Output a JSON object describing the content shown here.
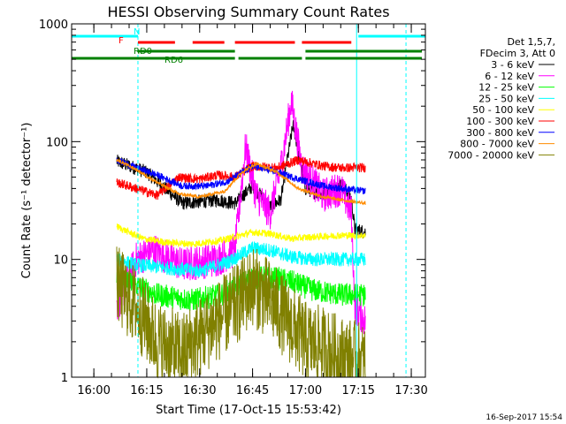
{
  "chart_data": {
    "type": "line",
    "title": "HESSI Observing Summary Count Rates",
    "xlabel": "Start Time (17-Oct-15 15:53:42)",
    "ylabel": "Count Rate (s⁻¹ detector⁻¹)",
    "y_scale": "log",
    "ylim": [
      1,
      1000
    ],
    "xlim": [
      "15:53:42",
      "17:34:00"
    ],
    "x_ticks": [
      "16:00",
      "16:15",
      "16:30",
      "16:45",
      "17:00",
      "17:15",
      "17:30"
    ],
    "y_ticks": [
      "1",
      "10",
      "100",
      "1000"
    ],
    "timestamp": "16-Sep-2017 15:54",
    "legend": {
      "header": [
        "Det 1,5,7,",
        "FDecim 3, Att 0"
      ],
      "placement": "right"
    },
    "flag_bars": [
      {
        "label": "N",
        "color": "#00ffff",
        "segments": [
          [
            "15:53:42",
            "16:12:30"
          ],
          [
            "17:15:00",
            "17:34:00"
          ]
        ]
      },
      {
        "label": "F",
        "color": "#ff0000",
        "segments": [
          [
            "16:12:30",
            "16:23:00"
          ],
          [
            "16:28:00",
            "16:37:00"
          ],
          [
            "16:40:00",
            "16:57:00"
          ],
          [
            "16:59:00",
            "17:13:00"
          ]
        ]
      },
      {
        "label": "RD0",
        "color": "#008000",
        "segments": [
          [
            "16:12:30",
            "16:40:00"
          ],
          [
            "17:00:00",
            "17:33:00"
          ]
        ]
      },
      {
        "label": "RD6",
        "color": "#008000",
        "segments": [
          [
            "15:53:42",
            "16:40:00"
          ],
          [
            "16:41:00",
            "16:59:00"
          ],
          [
            "17:00:00",
            "17:33:00"
          ]
        ]
      }
    ],
    "vlines": [
      {
        "time": "15:53:42",
        "style": "solid"
      },
      {
        "time": "16:12:30",
        "style": "dashed"
      },
      {
        "time": "17:14:30",
        "style": "solid"
      },
      {
        "time": "17:28:30",
        "style": "dashed"
      }
    ],
    "series": [
      {
        "name": "3 - 6 keV",
        "color": "#000000",
        "noise": 0.06,
        "points": [
          [
            "16:06:30",
            68
          ],
          [
            "16:15:00",
            55
          ],
          [
            "16:25:00",
            30
          ],
          [
            "16:35:00",
            32
          ],
          [
            "16:40:00",
            30
          ],
          [
            "16:45:00",
            42
          ],
          [
            "16:50:00",
            28
          ],
          [
            "16:53:00",
            32
          ],
          [
            "16:56:30",
            140
          ],
          [
            "17:00:00",
            40
          ],
          [
            "17:05:00",
            35
          ],
          [
            "17:10:00",
            45
          ],
          [
            "17:13:00",
            33
          ],
          [
            "17:14:00",
            18
          ],
          [
            "17:17:00",
            17
          ]
        ]
      },
      {
        "name": "6 - 12 keV",
        "color": "#ff00ff",
        "noise": 0.15,
        "points": [
          [
            "16:06:30",
            4
          ],
          [
            "16:09:00",
            6
          ],
          [
            "16:12:00",
            10
          ],
          [
            "16:17:00",
            12
          ],
          [
            "16:25:00",
            9
          ],
          [
            "16:35:00",
            10
          ],
          [
            "16:40:00",
            12
          ],
          [
            "16:43:00",
            90
          ],
          [
            "16:46:00",
            35
          ],
          [
            "16:50:00",
            25
          ],
          [
            "16:53:00",
            60
          ],
          [
            "16:56:00",
            220
          ],
          [
            "16:59:00",
            60
          ],
          [
            "17:05:00",
            35
          ],
          [
            "17:10:00",
            40
          ],
          [
            "17:13:00",
            25
          ],
          [
            "17:14:00",
            4
          ],
          [
            "17:17:00",
            3
          ]
        ]
      },
      {
        "name": "12 - 25 keV",
        "color": "#00ff00",
        "noise": 0.1,
        "points": [
          [
            "16:06:30",
            7
          ],
          [
            "16:12:00",
            6
          ],
          [
            "16:18:00",
            5
          ],
          [
            "16:28:00",
            4.5
          ],
          [
            "16:36:00",
            5
          ],
          [
            "16:45:00",
            7
          ],
          [
            "16:50:00",
            7
          ],
          [
            "16:56:00",
            6.5
          ],
          [
            "17:02:00",
            5.5
          ],
          [
            "17:10:00",
            5
          ],
          [
            "17:17:00",
            5
          ]
        ]
      },
      {
        "name": "25 - 50 keV",
        "color": "#00ffff",
        "noise": 0.06,
        "points": [
          [
            "16:06:30",
            10
          ],
          [
            "16:12:00",
            9
          ],
          [
            "16:20:00",
            8.5
          ],
          [
            "16:30:00",
            8
          ],
          [
            "16:38:00",
            9.5
          ],
          [
            "16:45:00",
            12.5
          ],
          [
            "16:50:00",
            12
          ],
          [
            "16:56:00",
            10.5
          ],
          [
            "17:02:00",
            10
          ],
          [
            "17:10:00",
            10
          ],
          [
            "17:17:00",
            10
          ]
        ]
      },
      {
        "name": "50 - 100 keV",
        "color": "#ffff00",
        "noise": 0.03,
        "points": [
          [
            "16:06:30",
            19
          ],
          [
            "16:10:00",
            17
          ],
          [
            "16:14:00",
            15
          ],
          [
            "16:20:00",
            14
          ],
          [
            "16:28:00",
            13.5
          ],
          [
            "16:36:00",
            14.5
          ],
          [
            "16:45:00",
            17
          ],
          [
            "16:50:00",
            16.5
          ],
          [
            "16:56:00",
            15
          ],
          [
            "17:02:00",
            15.5
          ],
          [
            "17:10:00",
            16
          ],
          [
            "17:17:00",
            16
          ]
        ]
      },
      {
        "name": "100 - 300 keV",
        "color": "#ff0000",
        "noise": 0.04,
        "points": [
          [
            "16:06:30",
            45
          ],
          [
            "16:12:00",
            40
          ],
          [
            "16:18:00",
            35
          ],
          [
            "16:24:00",
            50
          ],
          [
            "16:30:00",
            48
          ],
          [
            "16:35:00",
            52
          ],
          [
            "16:40:00",
            50
          ],
          [
            "16:45:00",
            62
          ],
          [
            "16:52:00",
            60
          ],
          [
            "16:58:00",
            70
          ],
          [
            "17:05:00",
            62
          ],
          [
            "17:10:00",
            60
          ],
          [
            "17:17:00",
            60
          ]
        ]
      },
      {
        "name": "300 - 800 keV",
        "color": "#0000ff",
        "noise": 0.03,
        "points": [
          [
            "16:06:30",
            70
          ],
          [
            "16:12:00",
            60
          ],
          [
            "16:18:00",
            52
          ],
          [
            "16:25:00",
            42
          ],
          [
            "16:32:00",
            42
          ],
          [
            "16:38:00",
            46
          ],
          [
            "16:45:00",
            62
          ],
          [
            "16:52:00",
            55
          ],
          [
            "16:58:00",
            48
          ],
          [
            "17:05:00",
            42
          ],
          [
            "17:10:00",
            40
          ],
          [
            "17:17:00",
            38
          ]
        ]
      },
      {
        "name": "800 - 7000 keV",
        "color": "#ff8c00",
        "noise": 0.015,
        "points": [
          [
            "16:06:30",
            70
          ],
          [
            "16:12:00",
            58
          ],
          [
            "16:18:00",
            45
          ],
          [
            "16:24:00",
            36
          ],
          [
            "16:30:00",
            34
          ],
          [
            "16:37:00",
            38
          ],
          [
            "16:42:00",
            55
          ],
          [
            "16:46:00",
            65
          ],
          [
            "16:52:00",
            55
          ],
          [
            "16:58:00",
            40
          ],
          [
            "17:05:00",
            34
          ],
          [
            "17:10:00",
            32
          ],
          [
            "17:17:00",
            30
          ]
        ]
      },
      {
        "name": "7000 - 20000 keV",
        "color": "#808000",
        "noise": 0.35,
        "points": [
          [
            "16:06:30",
            6
          ],
          [
            "16:12:00",
            4
          ],
          [
            "16:18:00",
            2
          ],
          [
            "16:25:00",
            1.6
          ],
          [
            "16:32:00",
            2.5
          ],
          [
            "16:40:00",
            4
          ],
          [
            "16:45:00",
            6
          ],
          [
            "16:50:00",
            4.5
          ],
          [
            "16:55:00",
            3
          ],
          [
            "17:00:00",
            2
          ],
          [
            "17:05:00",
            1.8
          ],
          [
            "17:10:00",
            1.5
          ],
          [
            "17:17:00",
            1.3
          ]
        ]
      }
    ]
  }
}
